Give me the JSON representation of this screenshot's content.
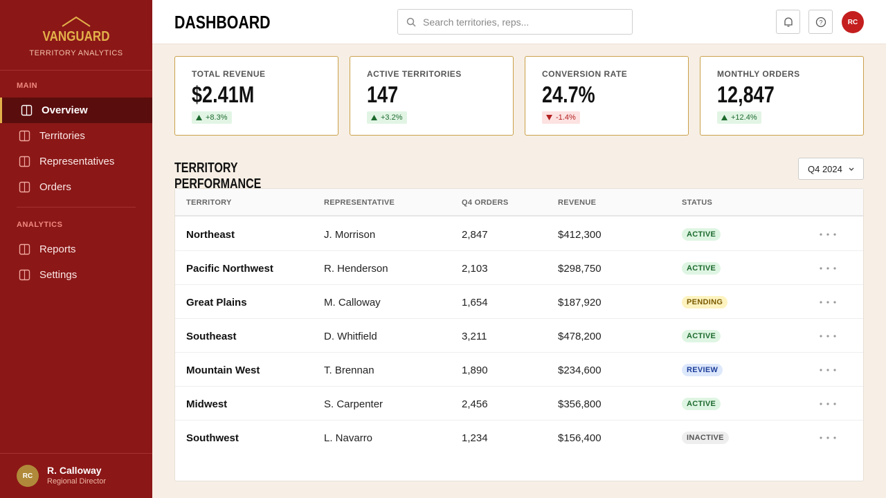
{
  "sidebar": {
    "brand": "VANGUARD",
    "tagline": "TERRITORY ANALYTICS",
    "sections": [
      {
        "title": "MAIN",
        "items": [
          "Overview",
          "Territories",
          "Representatives",
          "Orders"
        ]
      },
      {
        "title": "ANALYTICS",
        "items": [
          "Reports",
          "Settings"
        ]
      }
    ],
    "user": {
      "initials": "RC",
      "name": "R. Calloway",
      "role": "Regional Director"
    }
  },
  "header": {
    "title": "DASHBOARD",
    "search_placeholder": "Search territories, reps...",
    "avatar": "RC"
  },
  "kpis": [
    {
      "label": "TOTAL REVENUE",
      "value": "$2.41M",
      "change": "+8.3%",
      "trend": "up"
    },
    {
      "label": "ACTIVE TERRITORIES",
      "value": "147",
      "change": "+3.2%",
      "trend": "up"
    },
    {
      "label": "CONVERSION RATE",
      "value": "24.7%",
      "change": "-1.4%",
      "trend": "down"
    },
    {
      "label": "MONTHLY ORDERS",
      "value": "12,847",
      "change": "+12.4%",
      "trend": "up"
    }
  ],
  "table": {
    "title": "TERRITORY PERFORMANCE",
    "period": "Q4 2024",
    "columns": [
      "TERRITORY",
      "REPRESENTATIVE",
      "Q4 ORDERS",
      "REVENUE",
      "STATUS"
    ],
    "rows": [
      {
        "cells": [
          "Northeast",
          "J. Morrison",
          "2,847",
          "$412,300",
          "ACTIVE"
        ],
        "tone": "green"
      },
      {
        "cells": [
          "Pacific Northwest",
          "R. Henderson",
          "2,103",
          "$298,750",
          "ACTIVE"
        ],
        "tone": "green"
      },
      {
        "cells": [
          "Great Plains",
          "M. Calloway",
          "1,654",
          "$187,920",
          "PENDING"
        ],
        "tone": "yellow"
      },
      {
        "cells": [
          "Southeast",
          "D. Whitfield",
          "3,211",
          "$478,200",
          "ACTIVE"
        ],
        "tone": "green"
      },
      {
        "cells": [
          "Mountain West",
          "T. Brennan",
          "1,890",
          "$234,600",
          "REVIEW"
        ],
        "tone": "blue"
      },
      {
        "cells": [
          "Midwest",
          "S. Carpenter",
          "2,456",
          "$356,800",
          "ACTIVE"
        ],
        "tone": "green"
      },
      {
        "cells": [
          "Southwest",
          "L. Navarro",
          "1,234",
          "$156,400",
          "INACTIVE"
        ],
        "tone": "gray"
      }
    ]
  }
}
